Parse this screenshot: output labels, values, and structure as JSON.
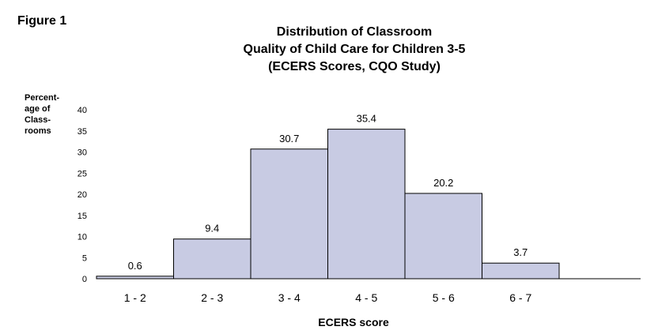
{
  "figure_label": "Figure 1",
  "chart_data": {
    "type": "bar",
    "title_lines": [
      "Distribution of Classroom",
      "Quality of Child Care for Children 3-5",
      "(ECERS Scores, CQO Study)"
    ],
    "ylabel_lines": [
      "Percent-",
      "age of",
      "Class-",
      "rooms"
    ],
    "xlabel": "ECERS score",
    "categories": [
      "1 - 2",
      "2 - 3",
      "3 - 4",
      "4 - 5",
      "5 - 6",
      "6 - 7"
    ],
    "values": [
      0.6,
      9.4,
      30.7,
      35.4,
      20.2,
      3.7
    ],
    "data_labels": [
      "0.6",
      "9.4",
      "30.7",
      "35.4",
      "20.2",
      "3.7"
    ],
    "y_ticks": [
      "0",
      "5",
      "10",
      "15",
      "20",
      "25",
      "30",
      "35",
      "40"
    ],
    "ylim": [
      0,
      40
    ],
    "grid": false,
    "bar_color": "#c8cbe3",
    "bar_edge_color": "#000000"
  }
}
